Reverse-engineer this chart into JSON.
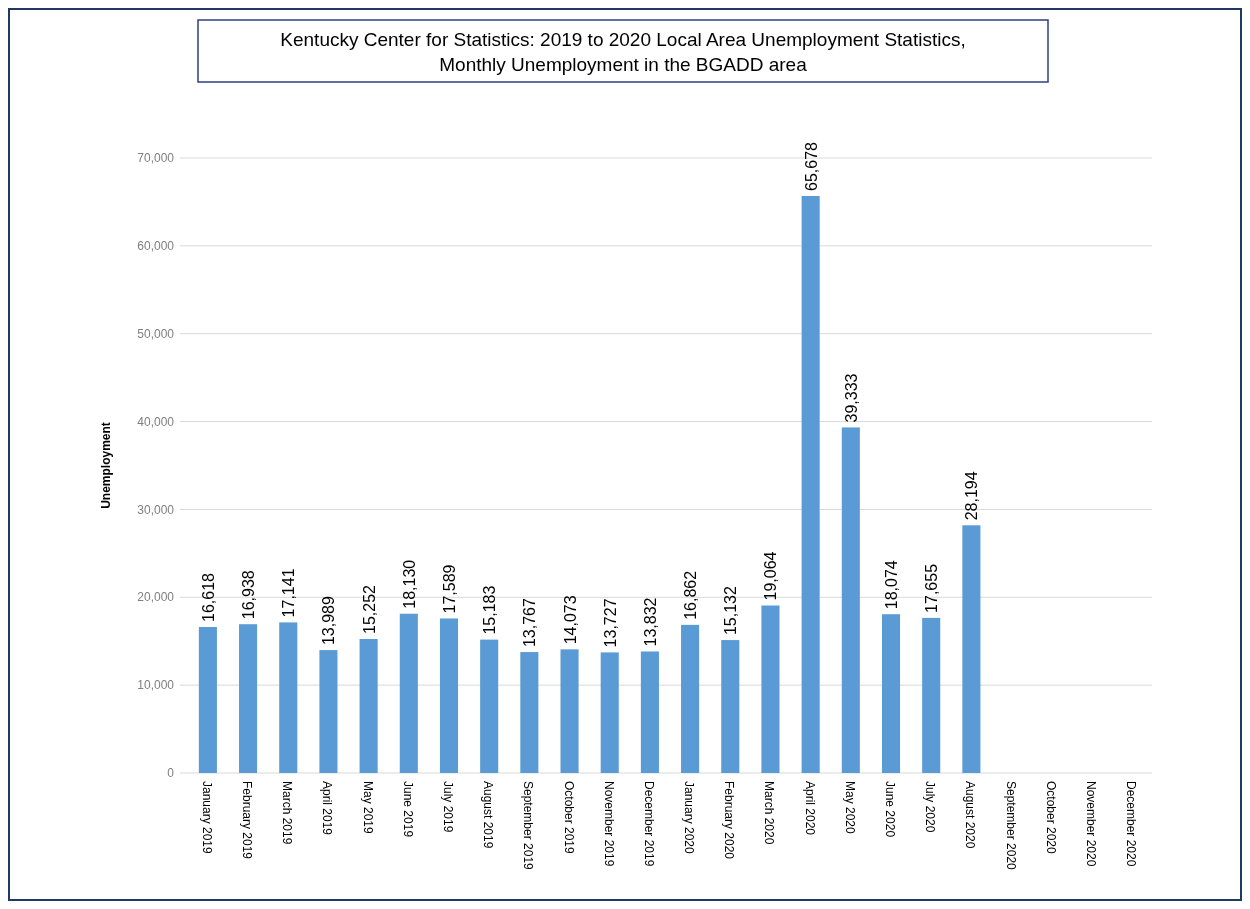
{
  "chart_data": {
    "type": "bar",
    "title": "Kentucky Center for Statistics:  2019 to 2020 Local Area Unemployment Statistics,\nMonthly Unemployment in the BGADD area",
    "ylabel": "Unemployment",
    "categories": [
      "January 2019",
      "February 2019",
      "March 2019",
      "April 2019",
      "May 2019",
      "June 2019",
      "July 2019",
      "August 2019",
      "September 2019",
      "October 2019",
      "November 2019",
      "December 2019",
      "January 2020",
      "February 2020",
      "March 2020",
      "April 2020",
      "May 2020",
      "June 2020",
      "July 2020",
      "August 2020",
      "September 2020",
      "October 2020",
      "November 2020",
      "December 2020"
    ],
    "values": [
      16618,
      16938,
      17141,
      13989,
      15252,
      18130,
      17589,
      15183,
      13767,
      14073,
      13727,
      13832,
      16862,
      15132,
      19064,
      65678,
      39333,
      18074,
      17655,
      28194,
      null,
      null,
      null,
      null
    ],
    "value_labels": [
      "16,618",
      "16,938",
      "17,141",
      "13,989",
      "15,252",
      "18,130",
      "17,589",
      "15,183",
      "13,767",
      "14,073",
      "13,727",
      "13,832",
      "16,862",
      "15,132",
      "19,064",
      "65,678",
      "39,333",
      "18,074",
      "17,655",
      "28,194",
      null,
      null,
      null,
      null
    ],
    "color": "#5b9bd5",
    "ylim": [
      0,
      70000
    ],
    "yticks": [
      0,
      {
        "value": 10000,
        "label": "10,000"
      },
      {
        "value": 20000,
        "label": "20,000"
      },
      {
        "value": 30000,
        "label": "30,000"
      },
      {
        "value": 40000,
        "label": "40,000"
      },
      {
        "value": 50000,
        "label": "50,000"
      },
      {
        "value": 60000,
        "label": "60,000"
      },
      {
        "value": 70000,
        "label": "70,000"
      }
    ],
    "grid": "y"
  }
}
